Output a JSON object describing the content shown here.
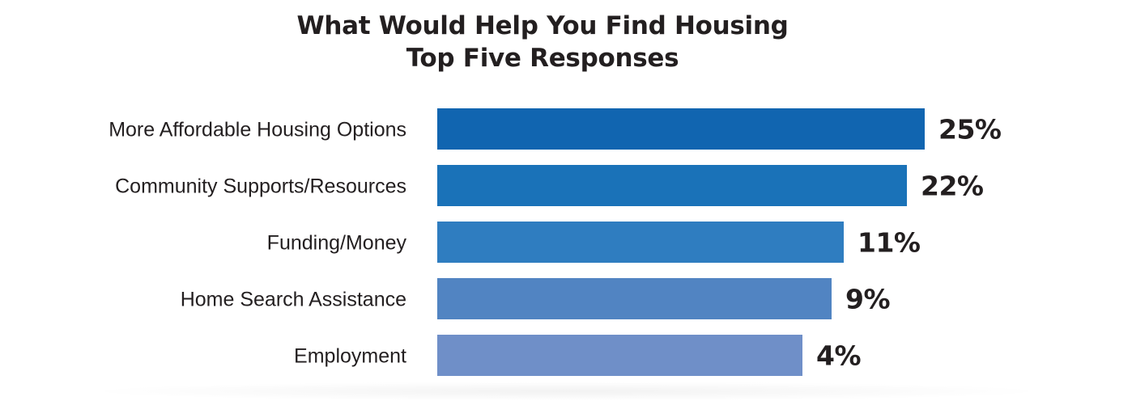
{
  "chart_data": {
    "type": "bar",
    "orientation": "horizontal",
    "title": "What Would Help You Find Housing",
    "subtitle": "Top Five Responses",
    "categories": [
      "More Affordable Housing Options",
      "Community Supports/Resources",
      "Funding/Money",
      "Home Search Assistance",
      "Employment"
    ],
    "values": [
      25,
      22,
      11,
      9,
      4
    ],
    "value_labels": [
      "25%",
      "22%",
      "11%",
      "9%",
      "4%"
    ],
    "colors": [
      "#1165b0",
      "#1a72b8",
      "#2f7dc0",
      "#5184c2",
      "#6f8fc8"
    ],
    "xlabel": "",
    "ylabel": "",
    "grid": false,
    "legend": "none"
  }
}
